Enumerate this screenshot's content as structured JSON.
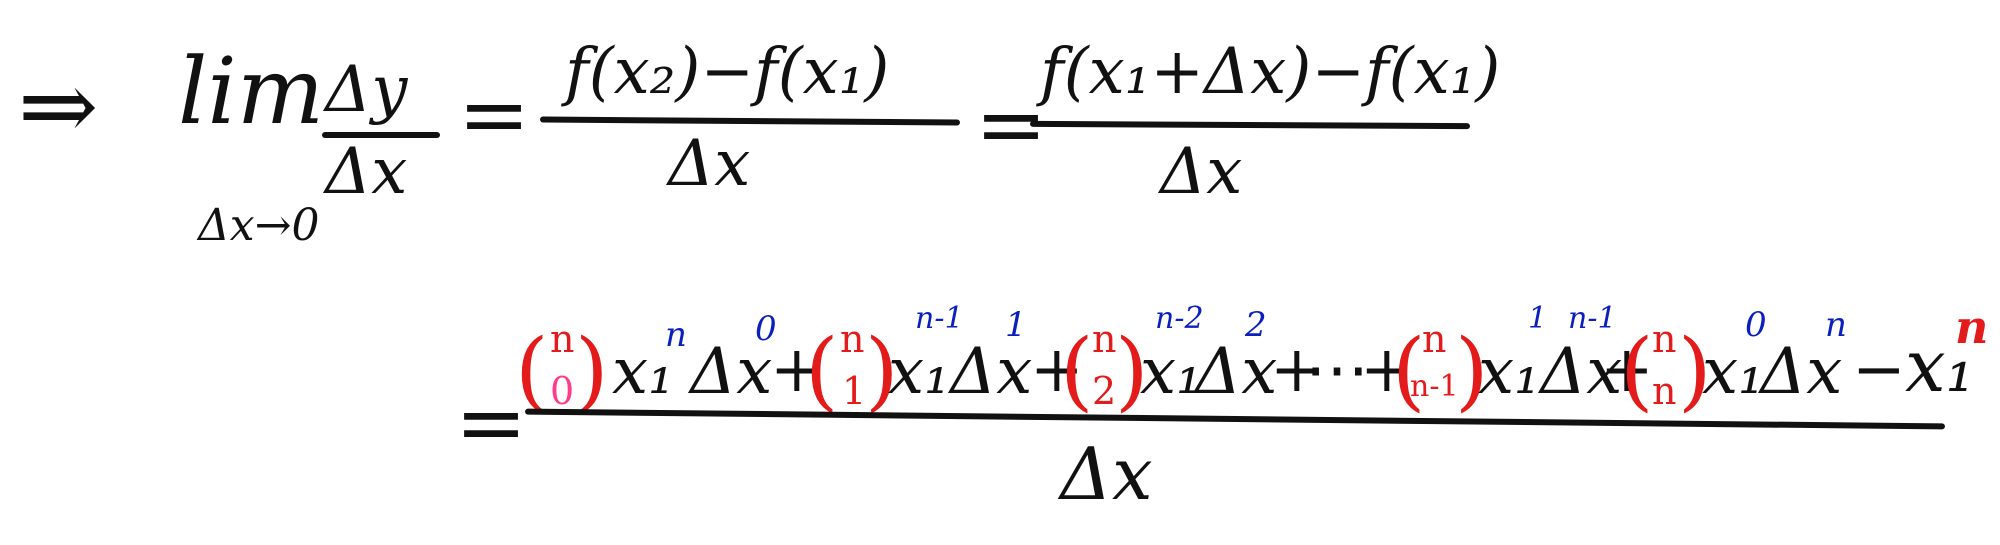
{
  "line1": {
    "implies": "⇒",
    "lim": "lim",
    "lim_sub": "Δx→0",
    "frac1_num": "Δy",
    "frac1_den": "Δx",
    "eq1": "=",
    "frac2_num": "f(x₂)−f(x₁)",
    "frac2_den": "Δx",
    "eq2": "=",
    "frac3_num": "f(x₁+Δx)−f(x₁)",
    "frac3_den": "Δx"
  },
  "line2": {
    "eq": "=",
    "terms": [
      {
        "top": "n",
        "bottom": "0",
        "base": "x₁",
        "base_exp": "n",
        "delta": "Δx",
        "delta_exp": "0",
        "plus": "+"
      },
      {
        "top": "n",
        "bottom": "1",
        "base": "x₁",
        "base_exp": "n-1",
        "delta": "Δx",
        "delta_exp": "1",
        "plus": "+"
      },
      {
        "top": "n",
        "bottom": "2",
        "base": "x₁",
        "base_exp": "n-2",
        "delta": "Δx",
        "delta_exp": "2",
        "plus": "+"
      },
      {
        "ellipsis": "⋯",
        "plus": "+"
      },
      {
        "top": "n",
        "bottom": "n-1",
        "base": "x₁",
        "base_exp": "1",
        "delta": "Δx",
        "delta_exp": "n-1",
        "plus": "+"
      },
      {
        "top": "n",
        "bottom": "n",
        "base": "x₁",
        "base_exp": "0",
        "delta": "Δx",
        "delta_exp": "n"
      }
    ],
    "minus": "−",
    "last_base": "x₁",
    "last_exp": "n",
    "den": "Δx"
  },
  "colors": {
    "ink": "#111111",
    "binomial": "#e31b1b",
    "binomial_zero": "#ff3b8a",
    "exponent": "#0b1fbf",
    "last_exponent": "#e31b1b"
  }
}
